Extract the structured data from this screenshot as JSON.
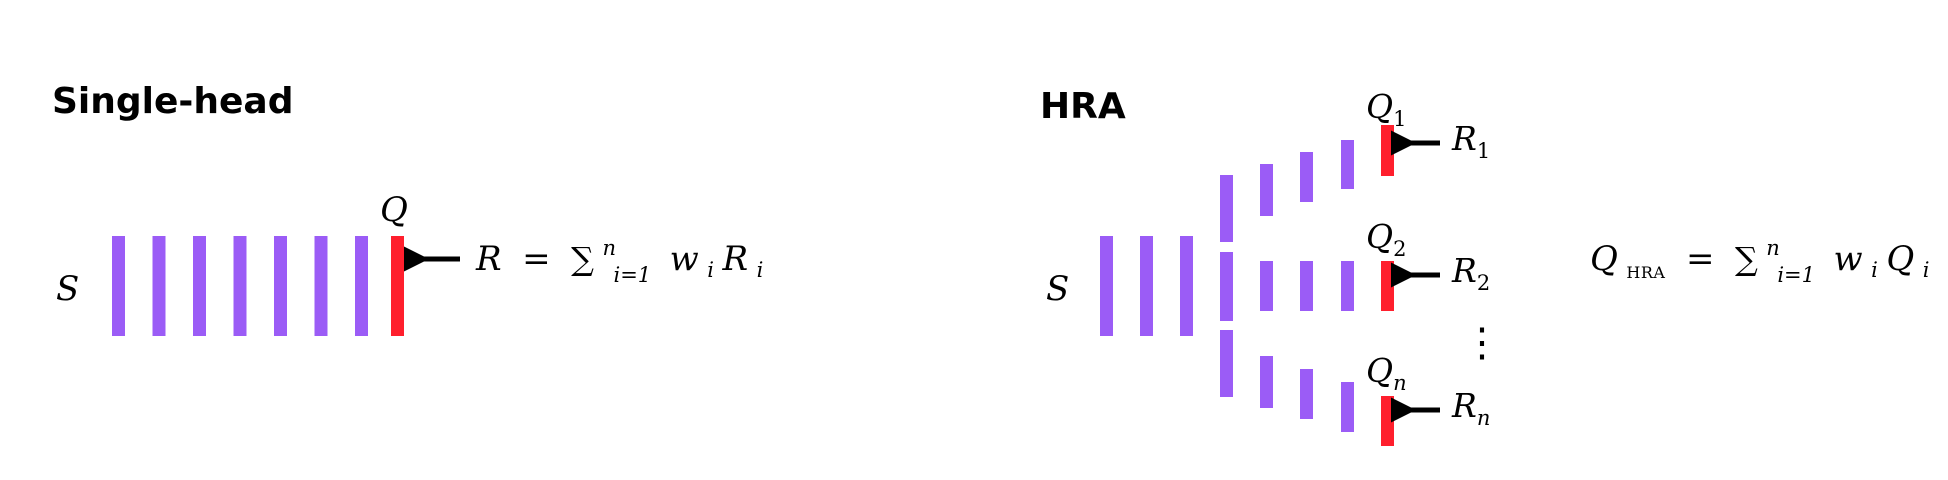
{
  "colors": {
    "bar": "#9b5cf6",
    "output_bar": "#ff1f2d",
    "ink": "#000000"
  },
  "single_head": {
    "title": "Single-head",
    "state_label": "S",
    "q_label": "Q",
    "reward": {
      "lhs": "R",
      "eq": "=",
      "sum": "∑",
      "sup": "n",
      "sub": "i=1",
      "w": "w",
      "wsub": "i",
      "r": "R",
      "rsub": "i"
    }
  },
  "hra": {
    "title": "HRA",
    "state_label": "S",
    "heads": [
      {
        "q": "Q",
        "q_sub": "1",
        "r": "R",
        "r_sub": "1"
      },
      {
        "q": "Q",
        "q_sub": "2",
        "r": "R",
        "r_sub": "2"
      },
      {
        "q": "Q",
        "q_sub": "n",
        "r": "R",
        "r_sub": "n"
      }
    ],
    "ellipsis": "⋮",
    "aggregate": {
      "lhs": "Q",
      "lhs_sub": "HRA",
      "eq": "=",
      "sum": "∑",
      "sup": "n",
      "sub": "i=1",
      "w": "w",
      "wsub": "i",
      "q": "Q",
      "qsub": "i"
    }
  }
}
